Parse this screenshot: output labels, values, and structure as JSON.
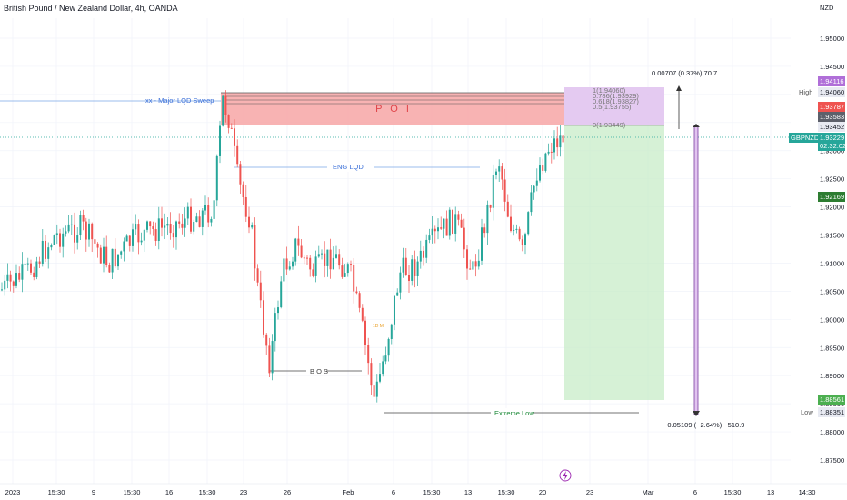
{
  "header": {
    "title": "British Pound / New Zealand Dollar, 4h, OANDA",
    "currency": "NZD"
  },
  "price_axis": {
    "ticks": [
      "1.95000",
      "1.94500",
      "1.94000",
      "1.93500",
      "1.93000",
      "1.92500",
      "1.92000",
      "1.91500",
      "1.91000",
      "1.90500",
      "1.90000",
      "1.89500",
      "1.89000",
      "1.88500",
      "1.88000",
      "1.87500"
    ]
  },
  "badges": {
    "high_label": "High",
    "high_value": "1.94060",
    "low_label": "Low",
    "low_value": "1.88351",
    "purple_top": "1.94116",
    "red": "1.93787",
    "gray1": "1.93583",
    "gray2": "1.93452",
    "symbol": "GBPNZD",
    "current": "1.93229",
    "countdown": "02:32:02",
    "green_mid": "1.92169",
    "green_low": "1.88561"
  },
  "time_axis": {
    "ticks": [
      "2023",
      "15:30",
      "9",
      "15:30",
      "16",
      "15:30",
      "23",
      "26",
      "Feb",
      "6",
      "15:30",
      "13",
      "15:30",
      "20",
      "23",
      "Mar",
      "6",
      "15:30",
      "13",
      "14:30"
    ]
  },
  "annotations": {
    "major_sweep": "xx   - Major LQD Sweep",
    "poi": "P O I",
    "eng_lqd": "ENG LQD",
    "bos": "B O S",
    "extreme_low": "Extreme Low",
    "small_mark": "1D M",
    "fib_1": "1(1.94060)",
    "fib_786": "0.786(1.93929)",
    "fib_618": "0.618(1.93827)",
    "fib_5": "0.5(1.93755)",
    "fib_0": "0(1.93449)",
    "measure_up": "0.00707 (0.37%) 70.7",
    "measure_down": "−0.05109 (−2.64%) −510.9"
  },
  "colors": {
    "up": "#26a69a",
    "down": "#ef5350",
    "poi_fill": "#f7a6a6",
    "target_fill": "#c8ecc8",
    "stop_fill": "#e1c4ef",
    "price_line": "#26a69a",
    "purple": "#b06fd8"
  },
  "icons": {
    "flash": "lightning-icon"
  }
}
